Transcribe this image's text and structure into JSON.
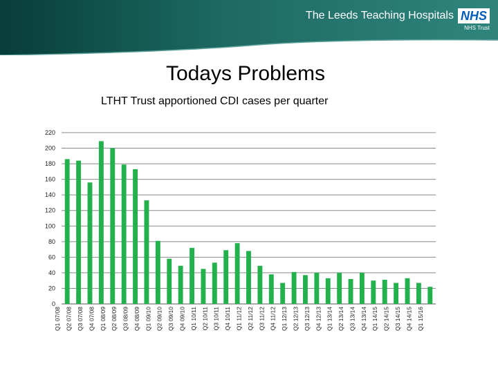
{
  "header": {
    "org_name": "The Leeds Teaching Hospitals",
    "nhs_mark": "NHS",
    "org_sub": "NHS Trust"
  },
  "slide": {
    "title": "Todays Problems"
  },
  "colors": {
    "banner_dark": "#0c4a45",
    "banner_light": "#2a7a72",
    "bar": "#22b14c",
    "grid": "#888888"
  },
  "chart_data": {
    "type": "bar",
    "title": "LTHT Trust apportioned CDI cases per quarter",
    "xlabel": "",
    "ylabel": "",
    "ylim": [
      0,
      220
    ],
    "yticks": [
      0,
      20,
      40,
      60,
      80,
      100,
      120,
      140,
      160,
      180,
      200,
      220
    ],
    "grid": true,
    "legend": "none",
    "categories": [
      "Q1 07/08",
      "Q2 07/08",
      "Q3 07/08",
      "Q4 07/08",
      "Q1 08/09",
      "Q2 08/09",
      "Q3 08/09",
      "Q4 08/09",
      "Q1 09/10",
      "Q2 09/10",
      "Q3 09/10",
      "Q4 09/10",
      "Q1 10/11",
      "Q2 10/11",
      "Q3 10/11",
      "Q4 10/11",
      "Q1 11/12",
      "Q2 11/12",
      "Q3 11/12",
      "Q4 11/12",
      "Q1 12/13",
      "Q2 12/13",
      "Q3 12/13",
      "Q4 12/13",
      "Q1 13/14",
      "Q2 13/14",
      "Q3 13/14",
      "Q4 13/14",
      "Q1 14/15",
      "Q2 14/15",
      "Q3 14/15",
      "Q4 14/15",
      "Q1 15/16"
    ],
    "values": [
      186,
      184,
      156,
      209,
      200,
      179,
      173,
      133,
      81,
      58,
      49,
      72,
      45,
      53,
      69,
      78,
      68,
      49,
      38,
      27,
      41,
      37,
      40,
      33,
      40,
      32,
      40,
      30,
      31,
      27,
      33,
      27,
      22
    ]
  }
}
